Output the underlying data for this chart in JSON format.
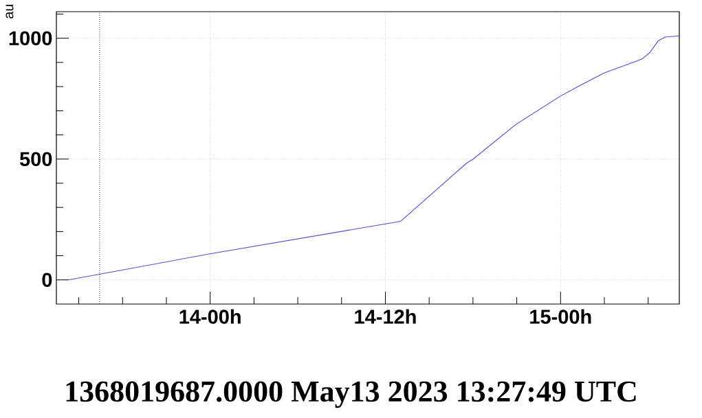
{
  "chart_data": {
    "type": "line",
    "ylabel": "au",
    "annotations": [
      "1368019687.0000 May13 2023 13:27:49 UTC"
    ],
    "x": [
      "2023-05-13T14:19",
      "2023-05-14T00:00",
      "2023-05-14T13:02",
      "2023-05-14T17:36",
      "2023-05-14T18:01",
      "2023-05-14T20:56",
      "2023-05-15T00:00",
      "2023-05-15T01:19",
      "2023-05-15T02:58",
      "2023-05-15T05:33",
      "2023-05-15T06:07",
      "2023-05-15T06:41",
      "2023-05-15T07:10",
      "2023-05-15T08:08"
    ],
    "series": [
      {
        "color": "#4b4bdc",
        "values": [
          0,
          108,
          242,
          485,
          500,
          643,
          761,
          804,
          856,
          913,
          941,
          989,
          1005,
          1010
        ]
      }
    ],
    "xlim": [
      "2023-05-13T13:28",
      "2023-05-15T08:08"
    ],
    "xticks": [
      {
        "value": "2023-05-13T15:00",
        "label": null
      },
      {
        "value": "2023-05-13T18:00",
        "label": null
      },
      {
        "value": "2023-05-13T21:00",
        "label": null
      },
      {
        "value": "2023-05-14T00:00",
        "label": "14-00h"
      },
      {
        "value": "2023-05-14T03:00",
        "label": null
      },
      {
        "value": "2023-05-14T06:00",
        "label": null
      },
      {
        "value": "2023-05-14T09:00",
        "label": null
      },
      {
        "value": "2023-05-14T12:00",
        "label": "14-12h"
      },
      {
        "value": "2023-05-14T15:00",
        "label": null
      },
      {
        "value": "2023-05-14T18:00",
        "label": null
      },
      {
        "value": "2023-05-14T21:00",
        "label": null
      },
      {
        "value": "2023-05-15T00:00",
        "label": "15-00h"
      },
      {
        "value": "2023-05-15T03:00",
        "label": null
      },
      {
        "value": "2023-05-15T06:00",
        "label": null
      }
    ],
    "ylim": [
      -100,
      1110
    ],
    "yticks": [
      0,
      {
        "value": 100,
        "label": null
      },
      {
        "value": 200,
        "label": null
      },
      {
        "value": 300,
        "label": null
      },
      {
        "value": 400,
        "label": null
      },
      500,
      {
        "value": 600,
        "label": null
      },
      {
        "value": 700,
        "label": null
      },
      {
        "value": 800,
        "label": null
      },
      {
        "value": 900,
        "label": null
      },
      1000,
      {
        "value": 1100,
        "label": null
      }
    ],
    "ref_lines": [
      {
        "axis": "x",
        "value": "2023-05-13T16:26",
        "color": "#000000",
        "line_style": "dotted"
      }
    ],
    "grid": true
  }
}
